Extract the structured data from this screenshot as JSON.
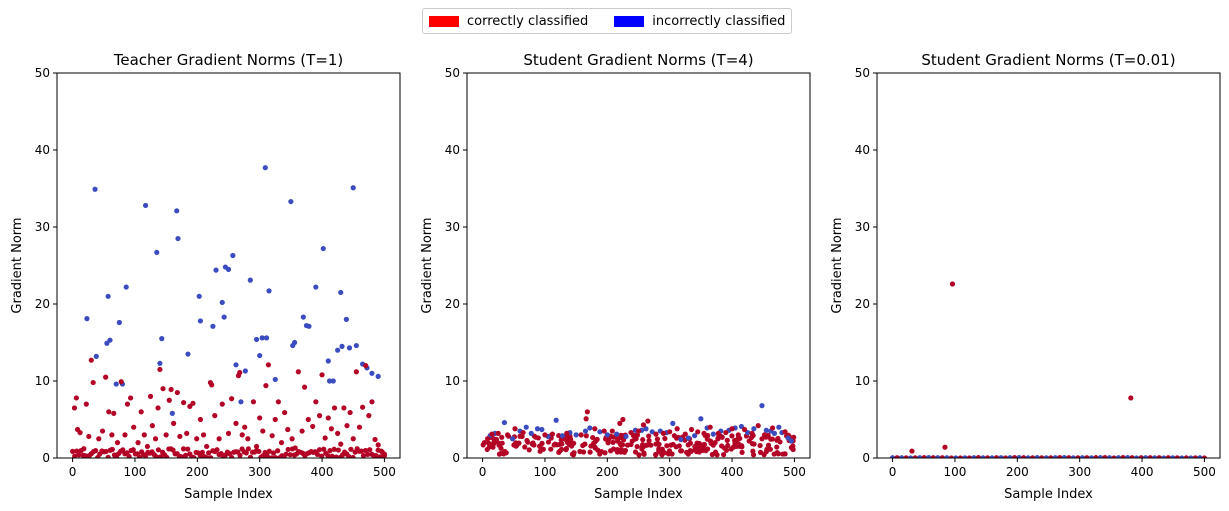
{
  "legend": [
    {
      "label": "correctly classified",
      "color": "#ff0000"
    },
    {
      "label": "incorrectly classified",
      "color": "#0000ff"
    }
  ],
  "marker_colors": {
    "correct": "#b40426",
    "incorrect": "#3b4cc0"
  },
  "chart_data": [
    {
      "type": "scatter",
      "title": "Teacher Gradient Norms (T=1)",
      "xlabel": "Sample Index",
      "ylabel": "Gradient Norm",
      "xlim": [
        -25,
        525
      ],
      "ylim": [
        0,
        50
      ],
      "xticks": [
        0,
        100,
        200,
        300,
        400,
        500
      ],
      "yticks": [
        0,
        10,
        20,
        30,
        40,
        50
      ],
      "incorrect_points": [
        [
          23,
          18.1
        ],
        [
          36,
          34.9
        ],
        [
          38,
          13.2
        ],
        [
          55,
          14.9
        ],
        [
          57,
          21.0
        ],
        [
          60,
          15.3
        ],
        [
          70,
          9.6
        ],
        [
          75,
          17.6
        ],
        [
          80,
          9.6
        ],
        [
          86,
          22.2
        ],
        [
          117,
          32.8
        ],
        [
          135,
          26.7
        ],
        [
          140,
          12.3
        ],
        [
          143,
          15.5
        ],
        [
          160,
          5.8
        ],
        [
          167,
          32.1
        ],
        [
          169,
          28.5
        ],
        [
          185,
          13.5
        ],
        [
          203,
          21.0
        ],
        [
          205,
          17.8
        ],
        [
          225,
          17.1
        ],
        [
          230,
          24.4
        ],
        [
          240,
          20.2
        ],
        [
          243,
          18.3
        ],
        [
          245,
          24.8
        ],
        [
          250,
          24.5
        ],
        [
          257,
          26.3
        ],
        [
          262,
          12.1
        ],
        [
          270,
          7.3
        ],
        [
          277,
          11.3
        ],
        [
          285,
          23.1
        ],
        [
          295,
          15.4
        ],
        [
          300,
          13.3
        ],
        [
          304,
          15.6
        ],
        [
          309,
          37.7
        ],
        [
          311,
          15.6
        ],
        [
          315,
          21.7
        ],
        [
          325,
          10.2
        ],
        [
          350,
          33.3
        ],
        [
          353,
          14.6
        ],
        [
          356,
          15.0
        ],
        [
          370,
          18.3
        ],
        [
          375,
          17.2
        ],
        [
          379,
          17.1
        ],
        [
          390,
          22.2
        ],
        [
          402,
          27.2
        ],
        [
          410,
          12.6
        ],
        [
          412,
          10.0
        ],
        [
          418,
          10.0
        ],
        [
          425,
          14.0
        ],
        [
          430,
          21.5
        ],
        [
          432,
          14.5
        ],
        [
          439,
          18.0
        ],
        [
          444,
          14.3
        ],
        [
          450,
          35.1
        ],
        [
          455,
          14.6
        ],
        [
          465,
          12.2
        ],
        [
          472,
          11.7
        ],
        [
          480,
          11.0
        ],
        [
          490,
          10.6
        ]
      ],
      "correct_points": [
        [
          3,
          6.5
        ],
        [
          6,
          7.8
        ],
        [
          8,
          3.7
        ],
        [
          12,
          3.3
        ],
        [
          18,
          1.2
        ],
        [
          22,
          7.0
        ],
        [
          26,
          2.8
        ],
        [
          30,
          12.7
        ],
        [
          33,
          9.8
        ],
        [
          42,
          2.5
        ],
        [
          48,
          3.5
        ],
        [
          53,
          10.5
        ],
        [
          58,
          6.0
        ],
        [
          63,
          3.0
        ],
        [
          66,
          5.8
        ],
        [
          72,
          2.0
        ],
        [
          78,
          9.9
        ],
        [
          84,
          3.0
        ],
        [
          88,
          7.0
        ],
        [
          93,
          7.8
        ],
        [
          98,
          4.0
        ],
        [
          105,
          2.0
        ],
        [
          110,
          6.0
        ],
        [
          115,
          3.0
        ],
        [
          120,
          1.5
        ],
        [
          125,
          8.0
        ],
        [
          128,
          4.2
        ],
        [
          133,
          2.5
        ],
        [
          137,
          6.5
        ],
        [
          140,
          11.5
        ],
        [
          145,
          9.0
        ],
        [
          150,
          3.0
        ],
        [
          155,
          7.5
        ],
        [
          158,
          8.9
        ],
        [
          162,
          4.5
        ],
        [
          168,
          8.5
        ],
        [
          172,
          2.8
        ],
        [
          178,
          7.2
        ],
        [
          183,
          3.2
        ],
        [
          188,
          6.7
        ],
        [
          193,
          7.1
        ],
        [
          199,
          2.5
        ],
        [
          205,
          5.0
        ],
        [
          210,
          3.0
        ],
        [
          215,
          1.5
        ],
        [
          221,
          9.8
        ],
        [
          223,
          9.5
        ],
        [
          228,
          5.5
        ],
        [
          235,
          2.5
        ],
        [
          240,
          7.0
        ],
        [
          250,
          3.2
        ],
        [
          255,
          7.7
        ],
        [
          262,
          4.5
        ],
        [
          266,
          10.7
        ],
        [
          268,
          11.1
        ],
        [
          272,
          3.0
        ],
        [
          276,
          4.0
        ],
        [
          281,
          2.5
        ],
        [
          290,
          7.3
        ],
        [
          295,
          1.5
        ],
        [
          300,
          5.2
        ],
        [
          305,
          3.5
        ],
        [
          310,
          9.4
        ],
        [
          314,
          12.1
        ],
        [
          320,
          2.9
        ],
        [
          325,
          5.0
        ],
        [
          330,
          7.3
        ],
        [
          335,
          2.0
        ],
        [
          340,
          5.9
        ],
        [
          345,
          3.7
        ],
        [
          352,
          2.5
        ],
        [
          357,
          1.3
        ],
        [
          362,
          11.2
        ],
        [
          368,
          3.5
        ],
        [
          372,
          9.2
        ],
        [
          378,
          5.0
        ],
        [
          385,
          4.1
        ],
        [
          390,
          7.3
        ],
        [
          396,
          5.5
        ],
        [
          400,
          10.8
        ],
        [
          405,
          2.6
        ],
        [
          410,
          5.2
        ],
        [
          415,
          3.8
        ],
        [
          420,
          6.5
        ],
        [
          425,
          3.2
        ],
        [
          430,
          1.8
        ],
        [
          435,
          6.5
        ],
        [
          440,
          4.2
        ],
        [
          445,
          5.9
        ],
        [
          450,
          2.5
        ],
        [
          455,
          11.2
        ],
        [
          460,
          4.0
        ],
        [
          465,
          6.6
        ],
        [
          470,
          12.0
        ],
        [
          475,
          5.5
        ],
        [
          480,
          7.3
        ],
        [
          485,
          2.4
        ],
        [
          490,
          1.7
        ],
        [
          495,
          0.9
        ],
        [
          500,
          0.5
        ]
      ],
      "baseline": {
        "class": "correct",
        "count": 150,
        "max_value": 1.2
      }
    },
    {
      "type": "scatter",
      "title": "Student Gradient Norms (T=4)",
      "xlabel": "Sample Index",
      "ylabel": "Gradient Norm",
      "xlim": [
        -25,
        525
      ],
      "ylim": [
        0,
        50
      ],
      "xticks": [
        0,
        100,
        200,
        300,
        400,
        500
      ],
      "yticks": [
        0,
        10,
        20,
        30,
        40,
        50
      ],
      "incorrect_points": [
        [
          12,
          2.9
        ],
        [
          20,
          3.2
        ],
        [
          35,
          4.6
        ],
        [
          48,
          2.5
        ],
        [
          60,
          3.5
        ],
        [
          70,
          4.0
        ],
        [
          78,
          3.2
        ],
        [
          88,
          3.8
        ],
        [
          95,
          3.7
        ],
        [
          105,
          2.8
        ],
        [
          118,
          4.9
        ],
        [
          128,
          2.9
        ],
        [
          140,
          3.3
        ],
        [
          150,
          3.0
        ],
        [
          165,
          3.5
        ],
        [
          172,
          3.9
        ],
        [
          188,
          3.4
        ],
        [
          200,
          3.0
        ],
        [
          215,
          3.1
        ],
        [
          230,
          2.8
        ],
        [
          245,
          3.6
        ],
        [
          255,
          3.6
        ],
        [
          262,
          3.8
        ],
        [
          272,
          3.4
        ],
        [
          285,
          3.5
        ],
        [
          295,
          3.3
        ],
        [
          305,
          4.5
        ],
        [
          318,
          2.4
        ],
        [
          330,
          2.6
        ],
        [
          340,
          2.9
        ],
        [
          350,
          5.1
        ],
        [
          360,
          3.9
        ],
        [
          370,
          3.1
        ],
        [
          382,
          3.5
        ],
        [
          395,
          3.6
        ],
        [
          405,
          3.9
        ],
        [
          415,
          4.1
        ],
        [
          425,
          3.3
        ],
        [
          435,
          3.8
        ],
        [
          448,
          6.8
        ],
        [
          455,
          3.6
        ],
        [
          462,
          3.5
        ],
        [
          468,
          3.2
        ],
        [
          475,
          4.0
        ],
        [
          480,
          3.3
        ],
        [
          490,
          2.6
        ],
        [
          495,
          2.2
        ]
      ],
      "correct_points": [
        [
          3,
          2.0
        ],
        [
          8,
          2.5
        ],
        [
          15,
          3.1
        ],
        [
          25,
          3.2
        ],
        [
          40,
          3.0
        ],
        [
          52,
          3.8
        ],
        [
          65,
          3.3
        ],
        [
          85,
          2.7
        ],
        [
          100,
          3.0
        ],
        [
          112,
          3.1
        ],
        [
          135,
          3.2
        ],
        [
          158,
          3.0
        ],
        [
          166,
          5.1
        ],
        [
          168,
          6.0
        ],
        [
          180,
          3.8
        ],
        [
          195,
          3.5
        ],
        [
          208,
          3.5
        ],
        [
          220,
          4.5
        ],
        [
          225,
          5.0
        ],
        [
          238,
          3.3
        ],
        [
          250,
          3.5
        ],
        [
          258,
          4.3
        ],
        [
          265,
          4.8
        ],
        [
          278,
          3.1
        ],
        [
          290,
          3.2
        ],
        [
          300,
          3.4
        ],
        [
          312,
          3.8
        ],
        [
          325,
          3.1
        ],
        [
          335,
          3.7
        ],
        [
          345,
          3.4
        ],
        [
          355,
          3.2
        ],
        [
          365,
          4.0
        ],
        [
          378,
          3.2
        ],
        [
          390,
          3.3
        ],
        [
          400,
          3.8
        ],
        [
          410,
          3.0
        ],
        [
          420,
          3.7
        ],
        [
          432,
          3.2
        ],
        [
          442,
          4.2
        ],
        [
          452,
          3.0
        ],
        [
          465,
          3.9
        ],
        [
          472,
          2.3
        ],
        [
          485,
          3.4
        ],
        [
          498,
          1.1
        ]
      ],
      "band": {
        "class": "correct",
        "count": 280,
        "min_value": 0.4,
        "max_value": 3.0
      }
    },
    {
      "type": "scatter",
      "title": "Student Gradient Norms (T=0.01)",
      "xlabel": "Sample Index",
      "ylabel": "Gradient Norm",
      "xlim": [
        -25,
        525
      ],
      "ylim": [
        0,
        50
      ],
      "xticks": [
        0,
        100,
        200,
        300,
        400,
        500
      ],
      "yticks": [
        0,
        10,
        20,
        30,
        40,
        50
      ],
      "incorrect_points": [],
      "correct_points": [
        [
          31,
          0.9
        ],
        [
          84,
          1.4
        ],
        [
          96,
          22.6
        ],
        [
          382,
          7.8
        ]
      ],
      "baseline": {
        "class": "mixed",
        "count": 70,
        "max_value": 0.05
      }
    }
  ]
}
